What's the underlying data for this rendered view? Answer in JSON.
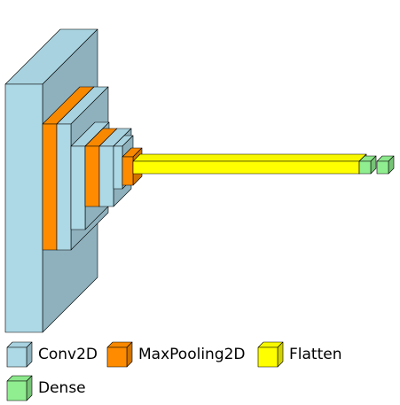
{
  "layer_types": [
    {
      "id": "conv2d",
      "label": "Conv2D",
      "color": "#add8e6"
    },
    {
      "id": "maxpool",
      "label": "MaxPooling2D",
      "color": "#ff8c00"
    },
    {
      "id": "flatten",
      "label": "Flatten",
      "color": "#ffff00"
    },
    {
      "id": "dense",
      "label": "Dense",
      "color": "#90ee90"
    }
  ],
  "layers": [
    {
      "type": "conv2d"
    },
    {
      "type": "maxpool"
    },
    {
      "type": "conv2d"
    },
    {
      "type": "conv2d"
    },
    {
      "type": "maxpool"
    },
    {
      "type": "conv2d"
    },
    {
      "type": "conv2d"
    },
    {
      "type": "maxpool"
    },
    {
      "type": "flatten"
    },
    {
      "type": "dense"
    },
    {
      "type": "dense"
    }
  ]
}
